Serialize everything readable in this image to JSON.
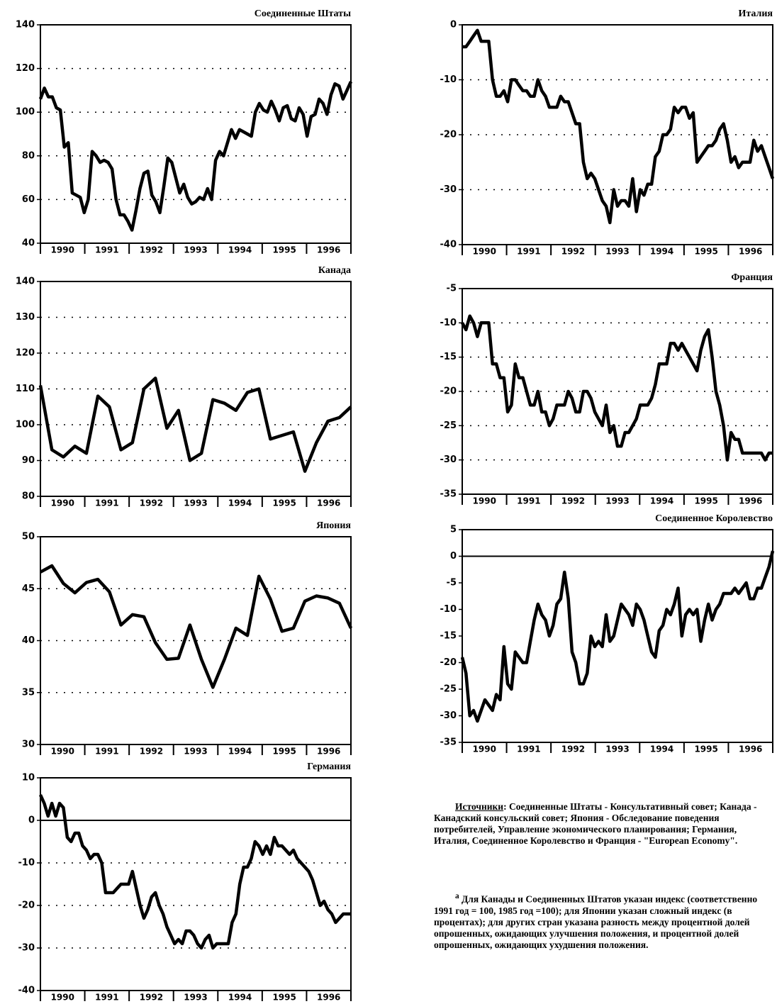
{
  "chart_data": [
    {
      "type": "line",
      "title": "Соединенные Штаты",
      "ylim": [
        40,
        140
      ],
      "yticks": [
        40,
        60,
        80,
        100,
        120,
        140
      ],
      "grid": true,
      "zero_line": false,
      "color": "#000000",
      "year_labels": [
        "1990",
        "1991",
        "1992",
        "1993",
        "1994",
        "1995",
        "1996"
      ],
      "values": [
        106,
        111,
        107,
        107,
        102,
        101,
        84,
        86,
        63,
        62,
        61,
        54,
        60,
        82,
        80,
        77,
        78,
        77,
        74,
        60,
        53,
        53,
        50,
        46,
        55,
        65,
        72,
        73,
        62,
        59,
        54,
        66,
        79,
        77,
        70,
        63,
        67,
        61,
        58,
        59,
        61,
        60,
        65,
        60,
        78,
        82,
        80,
        86,
        92,
        88,
        92,
        91,
        90,
        89,
        100,
        104,
        101,
        100,
        105,
        101,
        96,
        102,
        103,
        97,
        96,
        102,
        99,
        89,
        98,
        99,
        106,
        104,
        99,
        108,
        113,
        112,
        106,
        110,
        114
      ]
    },
    {
      "type": "line",
      "title": "Канада",
      "ylim": [
        80,
        140
      ],
      "yticks": [
        80,
        90,
        100,
        110,
        120,
        130,
        140
      ],
      "grid": true,
      "zero_line": false,
      "color": "#000000",
      "year_labels": [
        "1990",
        "1991",
        "1992",
        "1993",
        "1994",
        "1995",
        "1996"
      ],
      "values": [
        111,
        93,
        91,
        94,
        92,
        108,
        105,
        93,
        95,
        110,
        113,
        99,
        104,
        90,
        92,
        107,
        106,
        104,
        109,
        110,
        96,
        97,
        98,
        87,
        95,
        101,
        102,
        105
      ]
    },
    {
      "type": "line",
      "title": "Япония",
      "ylim": [
        30,
        50
      ],
      "yticks": [
        30,
        35,
        40,
        45,
        50
      ],
      "grid": true,
      "zero_line": false,
      "color": "#000000",
      "year_labels": [
        "1990",
        "1991",
        "1992",
        "1993",
        "1994",
        "1995",
        "1996"
      ],
      "values": [
        46.6,
        47.2,
        45.5,
        44.6,
        45.6,
        45.9,
        44.7,
        41.5,
        42.5,
        42.3,
        39.8,
        38.2,
        38.3,
        41.5,
        38.2,
        35.5,
        38.2,
        41.2,
        40.5,
        46.2,
        44,
        40.9,
        41.2,
        43.8,
        44.3,
        44.1,
        43.6,
        41.2
      ]
    },
    {
      "type": "line",
      "title": "Германия",
      "ylim": [
        -40,
        10
      ],
      "yticks": [
        -40,
        -30,
        -20,
        -10,
        0,
        10
      ],
      "grid": true,
      "zero_line": true,
      "color": "#000000",
      "year_labels": [
        "1990",
        "1991",
        "1992",
        "1993",
        "1994",
        "1995",
        "1996"
      ],
      "values": [
        6,
        4,
        1,
        4,
        1,
        4,
        3,
        -4,
        -5,
        -3,
        -3,
        -6,
        -7,
        -9,
        -8,
        -8,
        -10,
        -17,
        -17,
        -17,
        -16,
        -15,
        -15,
        -15,
        -12,
        -16,
        -20,
        -23,
        -21,
        -18,
        -17,
        -20,
        -22,
        -25,
        -27,
        -29,
        -28,
        -29,
        -26,
        -26,
        -27,
        -29,
        -30,
        -28,
        -27,
        -30,
        -29,
        -29,
        -29,
        -29,
        -24,
        -22,
        -15,
        -11,
        -11,
        -9,
        -5,
        -6,
        -8,
        -6,
        -8,
        -4,
        -6,
        -6,
        -7,
        -8,
        -7,
        -9,
        -10,
        -11,
        -12,
        -14,
        -17,
        -20,
        -19,
        -21,
        -22,
        -24,
        -23,
        -22,
        -22,
        -22
      ]
    },
    {
      "type": "line",
      "title": "Италия",
      "ylim": [
        -40,
        0
      ],
      "yticks": [
        -40,
        -30,
        -20,
        -10,
        0
      ],
      "grid": true,
      "zero_line": false,
      "color": "#000000",
      "year_labels": [
        "1990",
        "1991",
        "1992",
        "1993",
        "1994",
        "1995",
        "1996"
      ],
      "values": [
        -4,
        -4,
        -3,
        -2,
        -1,
        -3,
        -3,
        -3,
        -10,
        -13,
        -13,
        -12,
        -14,
        -10,
        -10,
        -11,
        -12,
        -12,
        -13,
        -13,
        -10,
        -12,
        -13,
        -15,
        -15,
        -15,
        -13,
        -14,
        -14,
        -16,
        -18,
        -18,
        -25,
        -28,
        -27,
        -28,
        -30,
        -32,
        -33,
        -36,
        -30,
        -33,
        -32,
        -32,
        -33,
        -28,
        -34,
        -30,
        -31,
        -29,
        -29,
        -24,
        -23,
        -20,
        -20,
        -19,
        -15,
        -16,
        -15,
        -15,
        -17,
        -16,
        -25,
        -24,
        -23,
        -22,
        -22,
        -21,
        -19,
        -18,
        -21,
        -25,
        -24,
        -26,
        -25,
        -25,
        -25,
        -21,
        -23,
        -22,
        -24,
        -26,
        -28
      ]
    },
    {
      "type": "line",
      "title": "Франция",
      "ylim": [
        -35,
        -5
      ],
      "yticks": [
        -35,
        -30,
        -25,
        -20,
        -15,
        -10,
        -5
      ],
      "grid": true,
      "zero_line": false,
      "color": "#000000",
      "year_labels": [
        "1990",
        "1991",
        "1992",
        "1993",
        "1994",
        "1995",
        "1996"
      ],
      "values": [
        -10,
        -11,
        -9,
        -10,
        -12,
        -10,
        -10,
        -10,
        -16,
        -16,
        -18,
        -18,
        -23,
        -22,
        -16,
        -18,
        -18,
        -20,
        -22,
        -22,
        -20,
        -23,
        -23,
        -25,
        -24,
        -22,
        -22,
        -22,
        -20,
        -21,
        -23,
        -23,
        -20,
        -20,
        -21,
        -23,
        -24,
        -25,
        -22,
        -26,
        -25,
        -28,
        -28,
        -26,
        -26,
        -25,
        -24,
        -22,
        -22,
        -22,
        -21,
        -19,
        -16,
        -16,
        -16,
        -13,
        -13,
        -14,
        -13,
        -14,
        -15,
        -16,
        -17,
        -14,
        -12,
        -11,
        -15,
        -20,
        -22,
        -25,
        -30,
        -26,
        -27,
        -27,
        -29,
        -29,
        -29,
        -29,
        -29,
        -29,
        -30,
        -29,
        -29
      ]
    },
    {
      "type": "line",
      "title": "Соединенное Королевство",
      "ylim": [
        -35,
        5
      ],
      "yticks": [
        -35,
        -30,
        -25,
        -20,
        -15,
        -10,
        -5,
        0,
        5
      ],
      "grid": false,
      "zero_line": true,
      "color": "#000000",
      "year_labels": [
        "1990",
        "1991",
        "1992",
        "1993",
        "1994",
        "1995",
        "1996"
      ],
      "values": [
        -19,
        -22,
        -30,
        -29,
        -31,
        -29,
        -27,
        -28,
        -29,
        -26,
        -27,
        -17,
        -24,
        -25,
        -18,
        -19,
        -20,
        -20,
        -16,
        -12,
        -9,
        -11,
        -12,
        -15,
        -13,
        -9,
        -8,
        -3,
        -8,
        -18,
        -20,
        -24,
        -24,
        -22,
        -15,
        -17,
        -16,
        -17,
        -11,
        -16,
        -15,
        -12,
        -9,
        -10,
        -11,
        -13,
        -9,
        -10,
        -12,
        -15,
        -18,
        -19,
        -14,
        -13,
        -10,
        -11,
        -9,
        -6,
        -15,
        -11,
        -10,
        -11,
        -10,
        -16,
        -12,
        -9,
        -12,
        -10,
        -9,
        -7,
        -7,
        -7,
        -6,
        -7,
        -6,
        -5,
        -8,
        -8,
        -6,
        -6,
        -4,
        -2,
        1
      ]
    }
  ],
  "notes": {
    "sources_label": "Источники",
    "sources_text": ": Соединенные Штаты - Консультативный совет; Канада - Канадский консульский совет; Япония - Обследование поведения потребителей, Управление экономического планирования; Германия, Италия, Соединенное Королевство и Франция - \"European Economy\".",
    "footnote_marker": "a",
    "footnote_text": " Для Канады и Соединенных Штатов указан индекс (соответственно 1991 год = 100, 1985 год =100); для Японии указан сложный индекс (в процентах); для других стран указана разность между процентной долей опрошенных, ожидающих улучшения положения, и процентной долей опрошенных, ожидающих ухудшения положения."
  }
}
